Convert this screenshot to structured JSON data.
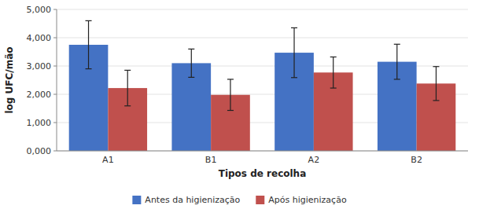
{
  "chart_data": {
    "type": "bar",
    "xlabel": "Tipos de recolha",
    "ylabel": "log UFC/mão",
    "categories": [
      "A1",
      "B1",
      "A2",
      "B2"
    ],
    "series": [
      {
        "name": "Antes da higienização",
        "color": "#4472C4",
        "values": [
          3.75,
          3.1,
          3.47,
          3.15
        ],
        "errors": [
          0.85,
          0.5,
          0.88,
          0.62
        ]
      },
      {
        "name": "Após higienização",
        "color": "#C0504D",
        "values": [
          2.22,
          1.98,
          2.77,
          2.38
        ],
        "errors": [
          0.63,
          0.55,
          0.55,
          0.6
        ]
      }
    ],
    "ylim": [
      0,
      5.0
    ],
    "yticks": [
      {
        "value": 0.0,
        "label": "0,000"
      },
      {
        "value": 1.0,
        "label": "1,000"
      },
      {
        "value": 2.0,
        "label": "2,000"
      },
      {
        "value": 3.0,
        "label": "3,000"
      },
      {
        "value": 4.0,
        "label": "4,000"
      },
      {
        "value": 5.0,
        "label": "5,000"
      }
    ],
    "grid": true,
    "legend": "bottom"
  }
}
